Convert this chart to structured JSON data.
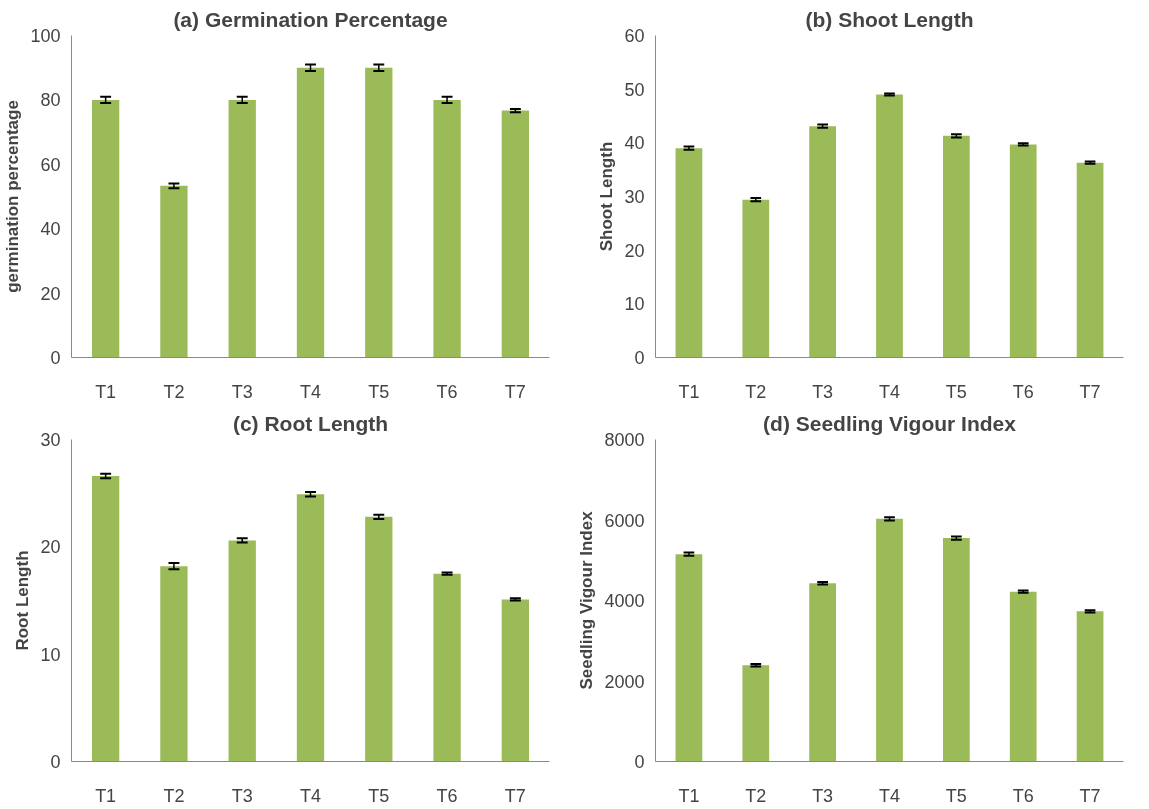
{
  "chart_data": [
    {
      "type": "bar",
      "title": "(a) Germination Percentage",
      "ylabel": "germination percentage",
      "categories": [
        "T1",
        "T2",
        "T3",
        "T4",
        "T5",
        "T6",
        "T7"
      ],
      "values": [
        80,
        53.3,
        80,
        90,
        90,
        80,
        76.7
      ],
      "errors": [
        1,
        0.7,
        1,
        1,
        1,
        1,
        0.5
      ],
      "color": "#9bbb59",
      "ylim": [
        0,
        100
      ],
      "yticks": [
        0,
        20,
        40,
        60,
        80,
        100
      ],
      "grid": false
    },
    {
      "type": "bar",
      "title": "(b) Shoot Length",
      "ylabel": "Shoot Length",
      "categories": [
        "T1",
        "T2",
        "T3",
        "T4",
        "T5",
        "T6",
        "T7"
      ],
      "values": [
        39,
        29.4,
        43.1,
        49,
        41.3,
        39.7,
        36.3
      ],
      "errors": [
        0.3,
        0.3,
        0.3,
        0.2,
        0.3,
        0.2,
        0.2
      ],
      "color": "#9bbb59",
      "ylim": [
        0,
        60
      ],
      "yticks": [
        0,
        10,
        20,
        30,
        40,
        50,
        60
      ],
      "grid": false
    },
    {
      "type": "bar",
      "title": "(c) Root Length",
      "ylabel": "Root Length",
      "categories": [
        "T1",
        "T2",
        "T3",
        "T4",
        "T5",
        "T6",
        "T7"
      ],
      "values": [
        26.6,
        18.2,
        20.6,
        24.9,
        22.8,
        17.5,
        15.1
      ],
      "errors": [
        0.2,
        0.3,
        0.2,
        0.2,
        0.2,
        0.1,
        0.1
      ],
      "color": "#9bbb59",
      "ylim": [
        0,
        30
      ],
      "yticks": [
        0,
        10,
        20,
        30
      ],
      "grid": false
    },
    {
      "type": "bar",
      "title": "(d) Seedling Vigour Index",
      "ylabel": "Seedling Vigour Index",
      "categories": [
        "T1",
        "T2",
        "T3",
        "T4",
        "T5",
        "T6",
        "T7"
      ],
      "values": [
        5150,
        2390,
        4430,
        6030,
        5550,
        4220,
        3730
      ],
      "errors": [
        40,
        30,
        30,
        40,
        40,
        30,
        30
      ],
      "color": "#9bbb59",
      "ylim": [
        0,
        8000
      ],
      "yticks": [
        0,
        2000,
        4000,
        6000,
        8000
      ],
      "grid": false
    }
  ]
}
